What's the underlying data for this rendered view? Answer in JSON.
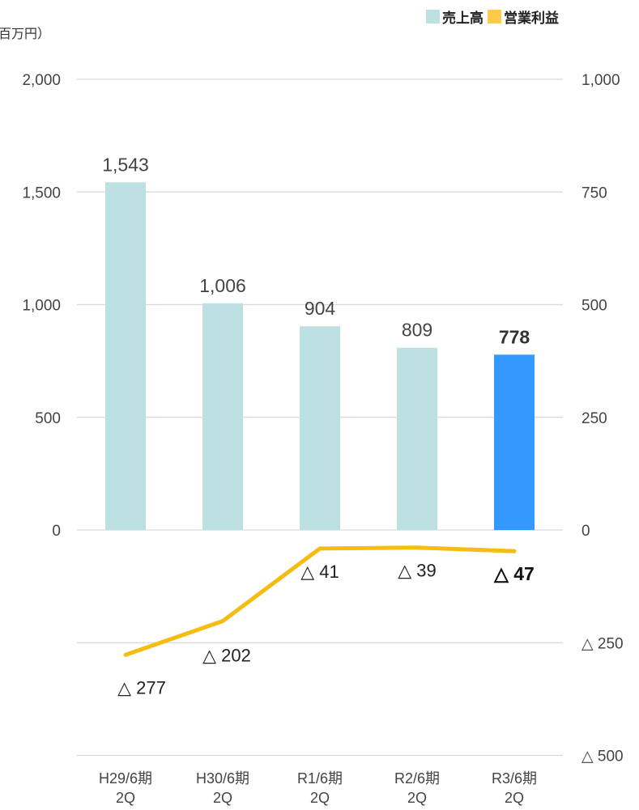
{
  "unit_label": "百万円）",
  "legend": [
    {
      "label": "売上高",
      "color": "#bde0e3"
    },
    {
      "label": "営業利益",
      "color": "#ffc94d"
    }
  ],
  "chart_data": {
    "type": "bar",
    "categories": [
      {
        "line1": "H29/6期",
        "line2": "2Q"
      },
      {
        "line1": "H30/6期",
        "line2": "2Q"
      },
      {
        "line1": "R1/6期",
        "line2": "2Q"
      },
      {
        "line1": "R2/6期",
        "line2": "2Q"
      },
      {
        "line1": "R3/6期",
        "line2": "2Q"
      }
    ],
    "series": [
      {
        "name": "売上高",
        "axis": "left",
        "type": "bar",
        "values": [
          1543,
          1006,
          904,
          809,
          778
        ],
        "labels": [
          "1,543",
          "1,006",
          "904",
          "809",
          "778"
        ],
        "color": "#bde0e3",
        "highlight_color": "#3399ff",
        "highlight_index": 4
      },
      {
        "name": "営業利益",
        "axis": "right",
        "type": "line",
        "values": [
          -277,
          -202,
          -41,
          -39,
          -47
        ],
        "labels": [
          "△ 277",
          "△ 202",
          "△ 41",
          "△ 39",
          "△ 47"
        ],
        "color": "#f5bd12",
        "highlight_index": 4
      }
    ],
    "left_axis": {
      "ylim": [
        -1000,
        2000
      ],
      "ticks": [
        2000,
        1500,
        1000,
        500,
        0
      ],
      "tick_labels": [
        "2,000",
        "1,500",
        "1,000",
        "500",
        "0"
      ]
    },
    "right_axis": {
      "ylim": [
        -500,
        1000
      ],
      "ticks": [
        1000,
        750,
        500,
        250,
        0,
        -250,
        -500
      ],
      "tick_labels": [
        "1,000",
        "750",
        "500",
        "250",
        "0",
        "△ 250",
        "△ 500"
      ]
    },
    "grid": true,
    "legend_position": "top-right"
  }
}
